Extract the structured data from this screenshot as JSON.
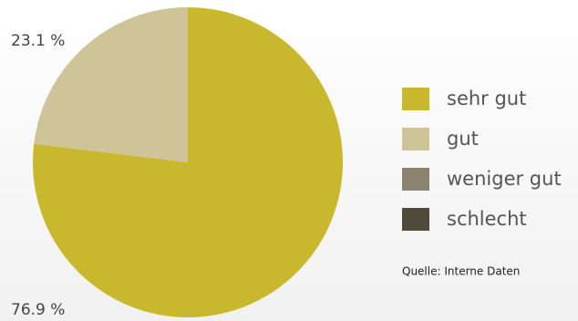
{
  "chart_data": {
    "type": "pie",
    "categories": [
      "sehr gut",
      "gut",
      "weniger gut",
      "schlecht"
    ],
    "values": [
      76.9,
      23.1,
      0,
      0
    ],
    "value_labels": [
      "76.9 %",
      "23.1 %",
      null,
      null
    ],
    "colors": [
      "#c9b82e",
      "#cfc398",
      "#8b8270",
      "#4f4a3c"
    ],
    "source": "Quelle: Interne Daten"
  }
}
